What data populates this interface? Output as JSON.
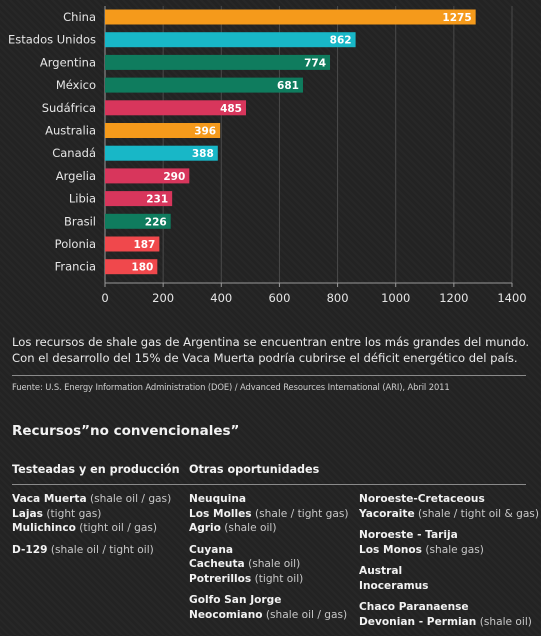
{
  "chart_data": {
    "type": "bar",
    "orientation": "horizontal",
    "categories": [
      "China",
      "Estados Unidos",
      "Argentina",
      "México",
      "Sudáfrica",
      "Australia",
      "Canadá",
      "Argelia",
      "Libia",
      "Brasil",
      "Polonia",
      "Francia"
    ],
    "values": [
      1275,
      862,
      774,
      681,
      485,
      396,
      388,
      290,
      231,
      226,
      187,
      180
    ],
    "value_labels": [
      "1275",
      "862",
      "774",
      "681",
      "485",
      "396",
      "388",
      "290",
      "231",
      "226",
      "187",
      "180"
    ],
    "bar_colors": [
      "#f59a1b",
      "#18b7c7",
      "#0f7c5e",
      "#0f7c5e",
      "#d8365c",
      "#f59a1b",
      "#18b7c7",
      "#d8365c",
      "#d8365c",
      "#0f7c5e",
      "#f0484c",
      "#f0484c"
    ],
    "xlim": [
      0,
      1400
    ],
    "xticks": [
      0,
      200,
      400,
      600,
      800,
      1000,
      1200,
      1400
    ],
    "grid": true,
    "title": "",
    "xlabel": "",
    "ylabel": ""
  },
  "summary": "Los recursos de shale gas de Argentina se encuentran entre los más grandes del mundo. Con el desarrollo del 15% de Vaca Muerta podría cubrirse el déficit energético del país.",
  "source": "Fuente: U.S. Energy Information Administration (DOE) / Advanced Resources International (ARI), Abril 2011",
  "section_title": "Recursos”no convencionales”",
  "columns": {
    "tested": {
      "heading": "Testeadas y en producción",
      "groups": [
        [
          {
            "name": "Vaca Muerta",
            "desc": "(shale oil / gas)"
          },
          {
            "name": "Lajas",
            "desc": "(tight gas)"
          },
          {
            "name": "Mulichinco",
            "desc": "(tight oil / gas)"
          }
        ],
        [
          {
            "name": "D-129",
            "desc": "(shale oil / tight oil)"
          }
        ]
      ]
    },
    "other": {
      "heading": "Otras oportunidades",
      "groups": [
        [
          {
            "name": "Neuquina",
            "desc": ""
          },
          {
            "name": "Los Molles",
            "desc": "(shale / tight gas)"
          },
          {
            "name": "Agrio",
            "desc": "(shale oil)"
          }
        ],
        [
          {
            "name": "Cuyana",
            "desc": ""
          },
          {
            "name": "Cacheuta",
            "desc": "(shale oil)"
          },
          {
            "name": "Potrerillos",
            "desc": "(tight oil)"
          }
        ],
        [
          {
            "name": "Golfo San Jorge",
            "desc": ""
          },
          {
            "name": "Neocomiano",
            "desc": "(shale oil / gas)"
          }
        ]
      ]
    },
    "other2": {
      "groups": [
        [
          {
            "name": "Noroeste-Cretaceous",
            "desc": ""
          },
          {
            "name": "Yacoraite",
            "desc": "(shale / tight oil & gas)"
          }
        ],
        [
          {
            "name": "Noroeste - Tarija",
            "desc": ""
          },
          {
            "name": "Los Monos",
            "desc": "(shale gas)"
          }
        ],
        [
          {
            "name": "Austral",
            "desc": ""
          },
          {
            "name": "Inoceramus",
            "desc": ""
          }
        ],
        [
          {
            "name": "Chaco Paranaense",
            "desc": ""
          },
          {
            "name": "Devonian - Permian",
            "desc": "(shale oil)"
          }
        ]
      ]
    }
  }
}
